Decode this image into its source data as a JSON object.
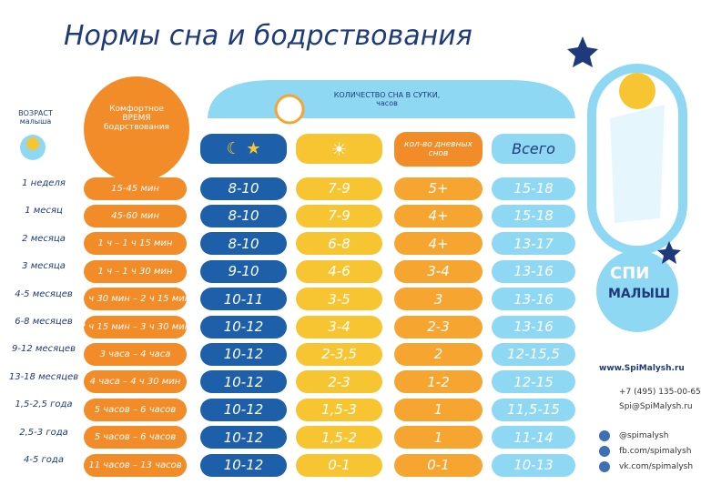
{
  "header": {
    "title": "Нормы сна и бодрствования"
  },
  "table": {
    "age_header": "ВОЗРАСТ малыша",
    "awake_header": "Комфортное ВРЕМЯ бодрствования",
    "sleep_header": "КОЛИЧЕСТВО СНА В СУТКИ, часов",
    "naps_header": "кол-во дневных снов",
    "total_header": "Всего",
    "rows": [
      [
        "1 неделя",
        "15-45 мин",
        "8-10",
        "7-9",
        "5+",
        "15-18"
      ],
      [
        "1 месяц",
        "45-60 мин",
        "8-10",
        "7-9",
        "4+",
        "15-18"
      ],
      [
        "2 месяца",
        "1 ч – 1 ч 15 мин",
        "8-10",
        "6-8",
        "4+",
        "13-17"
      ],
      [
        "3 месяца",
        "1 ч – 1 ч 30 мин",
        "9-10",
        "4-6",
        "3-4",
        "13-16"
      ],
      [
        "4-5 месяцев",
        "1 ч 30 мин – 2 ч 15 мин",
        "10-11",
        "3-5",
        "3",
        "13-16"
      ],
      [
        "6-8 месяцев",
        "2 ч 15 мин – 3 ч 30 мин",
        "10-12",
        "3-4",
        "2-3",
        "13-16"
      ],
      [
        "9-12 месяцев",
        "3 часа – 4 часа",
        "10-12",
        "2-3,5",
        "2",
        "12-15,5"
      ],
      [
        "13-18 месяцев",
        "4 часа – 4 ч 30 мин",
        "10-12",
        "2-3",
        "1-2",
        "12-15"
      ],
      [
        "1,5-2,5 года",
        "5 часов – 6 часов",
        "10-12",
        "1,5-3",
        "1",
        "11,5-15"
      ],
      [
        "2,5-3 года",
        "5 часов – 6 часов",
        "10-12",
        "1,5-2",
        "1",
        "11-14"
      ],
      [
        "4-5 года",
        "11 часов – 13 часов",
        "10-12",
        "0-1",
        "0-1",
        "10-13"
      ]
    ]
  },
  "logo": {
    "top": "СПИ",
    "bottom": "МАЛЫШ"
  },
  "contacts": {
    "site": "www.SpiMalysh.ru",
    "phone": "+7 (495) 135-00-65",
    "email": "Spi@SpiMalysh.ru",
    "instagram": "@spimalysh",
    "facebook": "fb.com/spimalysh",
    "vk": "vk.com/spimalysh"
  }
}
